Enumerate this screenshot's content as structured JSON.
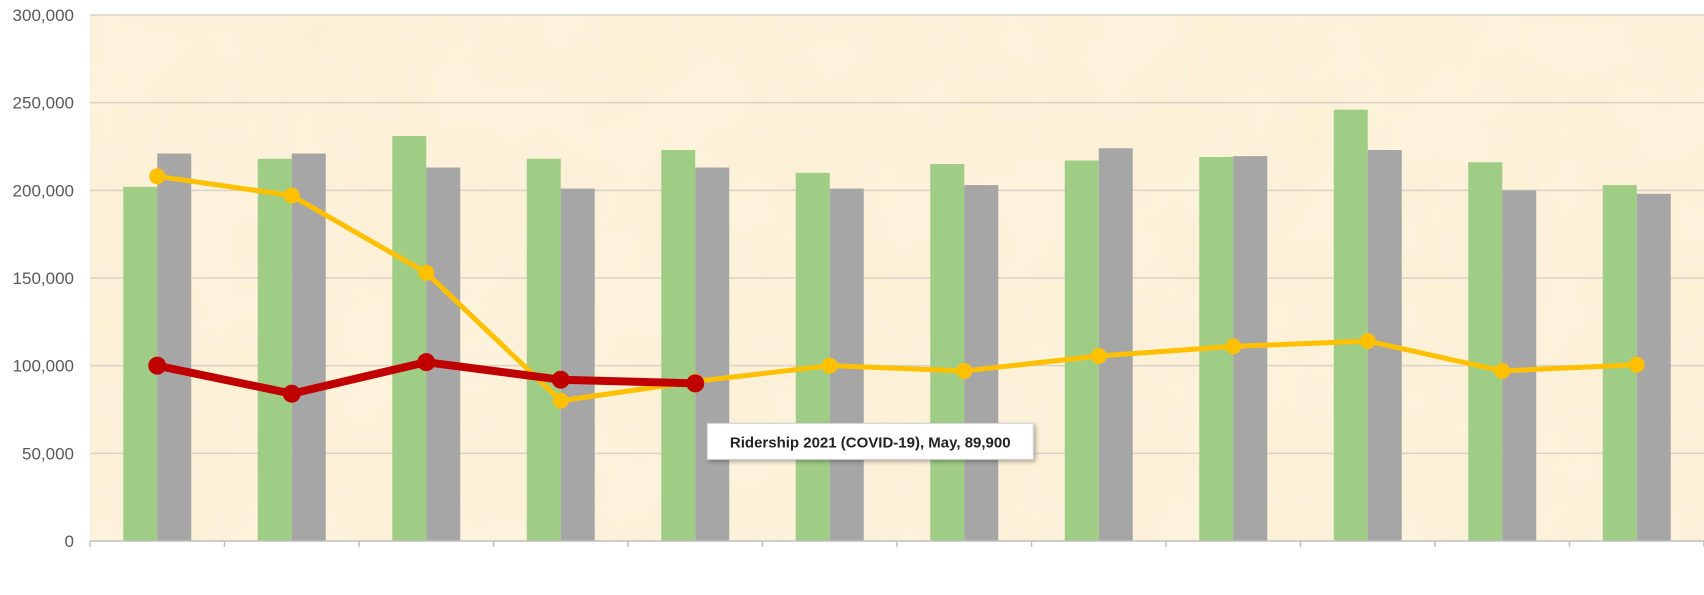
{
  "chart_data": {
    "type": "bar",
    "categories": [
      "",
      "",
      "",
      "",
      "",
      "",
      "",
      "",
      "",
      "",
      "",
      ""
    ],
    "ylim": [
      0,
      300000
    ],
    "yticks": [
      0,
      50000,
      100000,
      150000,
      200000,
      250000,
      300000
    ],
    "ytick_labels": [
      "0",
      "50,000",
      "100,000",
      "150,000",
      "200,000",
      "250,000",
      "300,000"
    ],
    "grid": true,
    "bar_series": [
      {
        "color": "#9FCD85",
        "values": [
          202000,
          218000,
          231000,
          218000,
          223000,
          210000,
          215000,
          217000,
          219000,
          246000,
          216000,
          203000
        ]
      },
      {
        "color": "#A6A6A6",
        "values": [
          221000,
          221000,
          213000,
          201000,
          213000,
          201000,
          203000,
          224000,
          219500,
          223000,
          200000,
          198000
        ]
      }
    ],
    "line_series": [
      {
        "color": "#FFC000",
        "values": [
          208000,
          197000,
          153000,
          80000,
          91000,
          100000,
          97000,
          105500,
          111000,
          114000,
          97000,
          100500
        ]
      },
      {
        "name": "Ridership 2021 (COVID-19)",
        "color": "#C00000",
        "values": [
          100000,
          84000,
          102000,
          92000,
          89900
        ]
      }
    ],
    "annotation": {
      "text": "Ridership 2021 (COVID-19), May, 89,900",
      "series": 1,
      "index": 4
    }
  }
}
